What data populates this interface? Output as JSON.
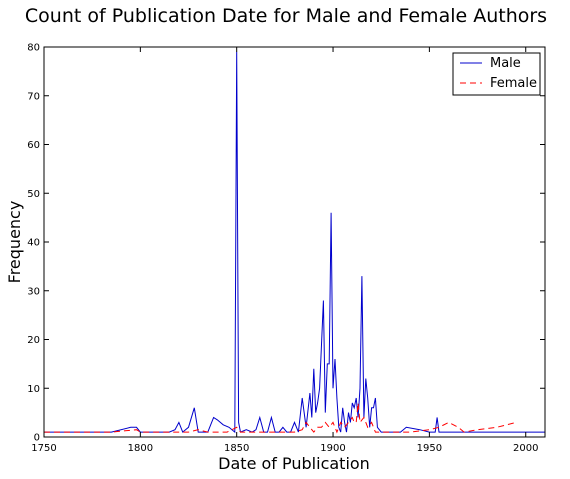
{
  "chart_data": {
    "type": "line",
    "title": "Count of Publication Date for Male and Female Authors",
    "xlabel": "Date of Publication",
    "ylabel": "Frequency",
    "xlim": [
      1750,
      2010
    ],
    "ylim": [
      0,
      80
    ],
    "xticks": [
      1750,
      1800,
      1850,
      1900,
      1950,
      2000
    ],
    "yticks": [
      0,
      10,
      20,
      30,
      40,
      50,
      60,
      70,
      80
    ],
    "legend": {
      "placement": "top-right"
    },
    "series": [
      {
        "name": "Male",
        "color": "#0000cc",
        "style": "solid",
        "points": [
          [
            1750,
            1
          ],
          [
            1785,
            1
          ],
          [
            1795,
            2
          ],
          [
            1798,
            2
          ],
          [
            1800,
            1
          ],
          [
            1815,
            1
          ],
          [
            1818,
            1.5
          ],
          [
            1820,
            3
          ],
          [
            1822,
            1
          ],
          [
            1825,
            2
          ],
          [
            1828,
            6
          ],
          [
            1830,
            1
          ],
          [
            1835,
            1
          ],
          [
            1838,
            4
          ],
          [
            1840,
            3.5
          ],
          [
            1843,
            2.5
          ],
          [
            1846,
            2
          ],
          [
            1849,
            1
          ],
          [
            1850,
            79
          ],
          [
            1851,
            3
          ],
          [
            1852,
            1
          ],
          [
            1855,
            1.5
          ],
          [
            1858,
            1
          ],
          [
            1860,
            1.5
          ],
          [
            1862,
            4
          ],
          [
            1864,
            1
          ],
          [
            1866,
            1
          ],
          [
            1868,
            4
          ],
          [
            1870,
            1
          ],
          [
            1872,
            1
          ],
          [
            1874,
            2
          ],
          [
            1876,
            1
          ],
          [
            1878,
            1
          ],
          [
            1880,
            3
          ],
          [
            1882,
            1
          ],
          [
            1884,
            8
          ],
          [
            1886,
            2
          ],
          [
            1888,
            9
          ],
          [
            1889,
            4
          ],
          [
            1890,
            14
          ],
          [
            1891,
            5
          ],
          [
            1892,
            7
          ],
          [
            1893,
            10
          ],
          [
            1895,
            28
          ],
          [
            1896,
            5
          ],
          [
            1897,
            15
          ],
          [
            1898,
            15
          ],
          [
            1899,
            46
          ],
          [
            1900,
            10
          ],
          [
            1901,
            16
          ],
          [
            1902,
            8
          ],
          [
            1903,
            2
          ],
          [
            1904,
            1
          ],
          [
            1905,
            6
          ],
          [
            1906,
            3
          ],
          [
            1907,
            1
          ],
          [
            1908,
            5
          ],
          [
            1909,
            3
          ],
          [
            1910,
            7
          ],
          [
            1911,
            6
          ],
          [
            1912,
            8
          ],
          [
            1913,
            4
          ],
          [
            1914,
            10
          ],
          [
            1915,
            33
          ],
          [
            1916,
            4
          ],
          [
            1917,
            12
          ],
          [
            1918,
            8
          ],
          [
            1919,
            2
          ],
          [
            1920,
            6
          ],
          [
            1921,
            6
          ],
          [
            1922,
            8
          ],
          [
            1923,
            2
          ],
          [
            1925,
            1
          ],
          [
            1930,
            1
          ],
          [
            1935,
            1
          ],
          [
            1938,
            2
          ],
          [
            1945,
            1.5
          ],
          [
            1950,
            1
          ],
          [
            1953,
            1
          ],
          [
            1954,
            4
          ],
          [
            1955,
            1
          ],
          [
            1960,
            1
          ],
          [
            2010,
            1
          ]
        ]
      },
      {
        "name": "Female",
        "color": "#ff0000",
        "style": "dashed",
        "points": [
          [
            1750,
            1
          ],
          [
            1785,
            1
          ],
          [
            1798,
            1.5
          ],
          [
            1800,
            1
          ],
          [
            1820,
            1
          ],
          [
            1825,
            1
          ],
          [
            1830,
            1.5
          ],
          [
            1835,
            1
          ],
          [
            1845,
            1
          ],
          [
            1850,
            2
          ],
          [
            1852,
            1
          ],
          [
            1860,
            1
          ],
          [
            1870,
            1
          ],
          [
            1880,
            1
          ],
          [
            1884,
            1.5
          ],
          [
            1886,
            3
          ],
          [
            1888,
            2
          ],
          [
            1890,
            1
          ],
          [
            1892,
            2
          ],
          [
            1894,
            2
          ],
          [
            1896,
            3
          ],
          [
            1898,
            2
          ],
          [
            1900,
            3
          ],
          [
            1902,
            1
          ],
          [
            1904,
            3
          ],
          [
            1906,
            2
          ],
          [
            1908,
            3
          ],
          [
            1910,
            4
          ],
          [
            1911,
            3
          ],
          [
            1912,
            3
          ],
          [
            1913,
            7
          ],
          [
            1914,
            3
          ],
          [
            1916,
            4
          ],
          [
            1918,
            2
          ],
          [
            1920,
            3
          ],
          [
            1922,
            1
          ],
          [
            1925,
            1
          ],
          [
            1935,
            1
          ],
          [
            1940,
            1
          ],
          [
            1950,
            1.5
          ],
          [
            1955,
            2
          ],
          [
            1960,
            3
          ],
          [
            1965,
            2
          ],
          [
            1968,
            1
          ],
          [
            1975,
            1.5
          ],
          [
            1985,
            2
          ],
          [
            1995,
            3
          ]
        ]
      }
    ]
  }
}
